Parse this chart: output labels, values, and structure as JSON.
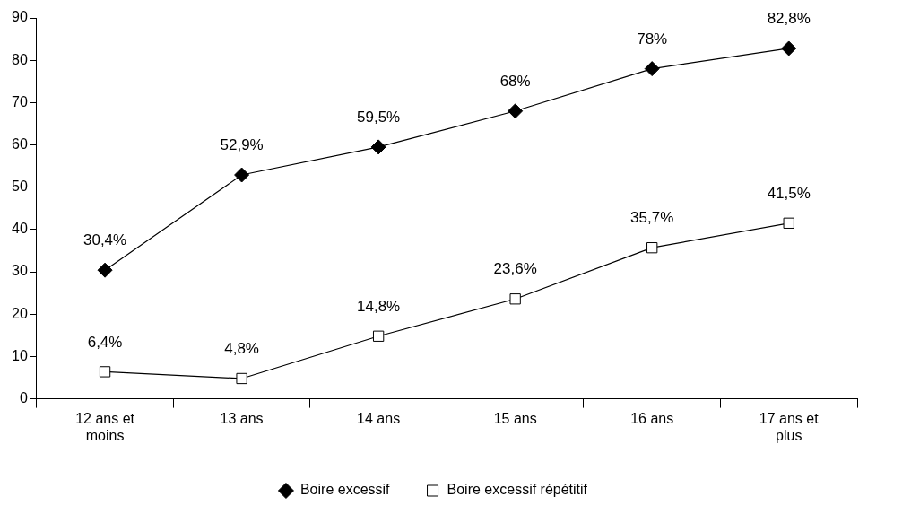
{
  "chart_data": {
    "type": "line",
    "categories": [
      "12 ans et moins",
      "13 ans",
      "14 ans",
      "15 ans",
      "16 ans",
      "17 ans et plus"
    ],
    "series": [
      {
        "name": "Boire excessif",
        "color": "#000000",
        "marker": "diamond",
        "values": [
          30.4,
          52.9,
          59.5,
          68,
          78,
          82.8
        ],
        "value_labels": [
          "30,4%",
          "52,9%",
          "59,5%",
          "68%",
          "78%",
          "82,8%"
        ]
      },
      {
        "name": "Boire excessif répétitif",
        "color": "#000000",
        "marker": "square",
        "values": [
          6.4,
          4.8,
          14.8,
          23.6,
          35.7,
          41.5
        ],
        "value_labels": [
          "6,4%",
          "4,8%",
          "14,8%",
          "23,6%",
          "35,7%",
          "41,5%"
        ]
      }
    ],
    "ylim": [
      0,
      90
    ],
    "yticks": [
      0,
      10,
      20,
      30,
      40,
      50,
      60,
      70,
      80,
      90
    ],
    "grid": false,
    "legend": "bottom",
    "line_style": "solid"
  }
}
